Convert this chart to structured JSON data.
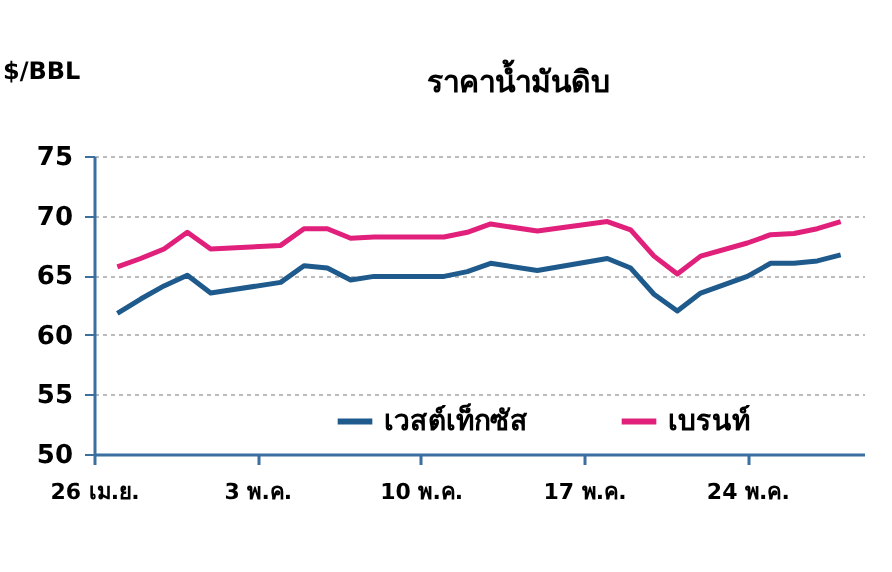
{
  "chart_data": {
    "type": "line",
    "title": "ราคาน้ำมันดิบ",
    "ylabel": "$/BBL",
    "x": [
      "--04-27",
      "--04-28",
      "--04-29",
      "--04-30",
      "--05-01",
      "--05-04",
      "--05-05",
      "--05-06",
      "--05-07",
      "--05-08",
      "--05-11",
      "--05-12",
      "--05-13",
      "--05-15",
      "--05-18",
      "--05-19",
      "--05-20",
      "--05-21",
      "--05-22",
      "--05-24",
      "--05-25",
      "--05-26",
      "--05-27",
      "--05-28"
    ],
    "series": [
      {
        "name": "เวสต์เท็กซัส",
        "color": "#1f5a8c",
        "values": [
          61.8,
          63.0,
          64.1,
          65.0,
          63.5,
          64.4,
          65.8,
          65.6,
          64.6,
          64.9,
          64.9,
          65.3,
          66.0,
          65.4,
          66.4,
          65.6,
          63.4,
          62.0,
          63.5,
          64.9,
          66.0,
          66.0,
          66.2,
          66.7
        ]
      },
      {
        "name": "เบรนท์",
        "color": "#e0207a",
        "values": [
          65.7,
          66.4,
          67.2,
          68.6,
          67.2,
          67.5,
          68.9,
          68.9,
          68.1,
          68.2,
          68.2,
          68.6,
          69.3,
          68.7,
          69.5,
          68.8,
          66.6,
          65.1,
          66.6,
          67.7,
          68.4,
          68.5,
          68.9,
          69.5
        ]
      }
    ],
    "xlim": [
      "--04-26",
      "--05-29"
    ],
    "xticks": [
      {
        "value": "--04-26",
        "label": "26 เม.ย."
      },
      {
        "value": "--05-03",
        "label": "3 พ.ค."
      },
      {
        "value": "--05-10",
        "label": "10 พ.ค."
      },
      {
        "value": "--05-17",
        "label": "17 พ.ค."
      },
      {
        "value": "--05-24",
        "label": "24 พ.ค."
      }
    ],
    "ylim": [
      50,
      75
    ],
    "yticks": [
      50,
      55,
      60,
      65,
      70,
      75
    ],
    "grid": "y",
    "legend": "bottom",
    "marker": "none",
    "line_style": "solid"
  }
}
